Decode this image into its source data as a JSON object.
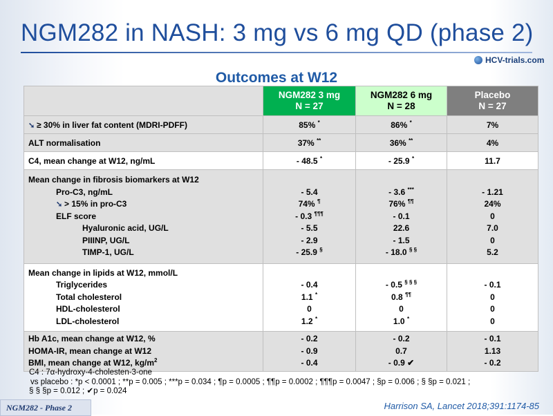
{
  "title": "NGM282 in NASH: 3 mg vs 6 mg QD (phase 2)",
  "logo_text": "HCV-trials.com",
  "subtitle": "Outcomes at W12",
  "header": {
    "col1_line1": "NGM282 3 mg",
    "col1_line2": "N = 27",
    "col2_line1": "NGM282 6 mg",
    "col2_line2": "N = 28",
    "col3_line1": "Placebo",
    "col3_line2": "N = 27"
  },
  "rows": {
    "liver_fat": {
      "label": "≥ 30% in liver fat content (MDRI-PDFF)",
      "v1": "85%",
      "s1": "*",
      "v2": "86%",
      "s2": "*",
      "v3": "7%"
    },
    "alt": {
      "label": "ALT normalisation",
      "v1": "37%",
      "s1": "**",
      "v2": "36%",
      "s2": "**",
      "v3": "4%"
    },
    "c4": {
      "label": "C4, mean change at W12, ng/mL",
      "v1": "- 48.5",
      "s1": "*",
      "v2": "- 25.9",
      "s2": "*",
      "v3": "11.7"
    },
    "fibrosis": {
      "heading": "Mean change in fibrosis biomarkers at W12",
      "procs": {
        "label": "Pro-C3, ng/mL",
        "v1": "- 5.4",
        "s1": "",
        "v2": "- 3.6",
        "s2": "***",
        "v3": "- 1.21"
      },
      "procs15": {
        "label": "> 15% in pro-C3",
        "v1": "74%",
        "s1": "¶",
        "v2": "76%",
        "s2": "¶¶",
        "v3": "24%"
      },
      "elf": {
        "label": "ELF score",
        "v1": "- 0.3",
        "s1": "¶¶¶",
        "v2": "- 0.1",
        "s2": "",
        "v3": "0"
      },
      "ha": {
        "label": "Hyaluronic acid, UG/L",
        "v1": "- 5.5",
        "s1": "",
        "v2": "22.6",
        "s2": "",
        "v3": "7.0"
      },
      "piiinp": {
        "label": "PIIINP, UG/L",
        "v1": "- 2.9",
        "s1": "",
        "v2": "- 1.5",
        "s2": "",
        "v3": "0"
      },
      "timp": {
        "label": "TIMP-1, UG/L",
        "v1": "- 25.9",
        "s1": "§",
        "v2": "- 18.0",
        "s2": "§ §",
        "v3": "5.2"
      }
    },
    "lipids": {
      "heading": "Mean change in lipids at W12, mmol/L",
      "tg": {
        "label": "Triglycerides",
        "v1": "- 0.4",
        "s1": "",
        "v2": "- 0.5",
        "s2": "§ § §",
        "v3": "- 0.1"
      },
      "tc": {
        "label": "Total cholesterol",
        "v1": "1.1",
        "s1": "*",
        "v2": "0.8",
        "s2": "¶¶",
        "v3": "0"
      },
      "hdl": {
        "label": "HDL-cholesterol",
        "v1": "0",
        "s1": "",
        "v2": "0",
        "s2": "",
        "v3": "0"
      },
      "ldl": {
        "label": "LDL-cholesterol",
        "v1": "1.2",
        "s1": "*",
        "v2": "1.0",
        "s2": "*",
        "v3": "0"
      }
    },
    "metabolic": {
      "hba1c": {
        "label": "Hb A1c, mean change at W12, %",
        "v1": "- 0.2",
        "v2": "- 0.2",
        "v3": "- 0.1"
      },
      "homa": {
        "label": "HOMA-IR, mean change at W12",
        "v1": "- 0.9",
        "v2": "0.7",
        "v3": "1.13"
      },
      "bmi": {
        "label": "BMI, mean change at W12, kg/m",
        "label_sup": "2",
        "v1": "- 0.4",
        "v2": "- 0.9",
        "s2": "✔",
        "v3": "- 0.2"
      }
    }
  },
  "footnotes": {
    "line1": "C4 : 7α-hydroxy-4-cholesten-3-one",
    "line2": "vs placebo : *p < 0.0001 ; **p = 0.005 ; ***p = 0.034 ; ¶p = 0.0005 ; ¶¶p = 0.0002 ; ¶¶¶p = 0.0047 ; §p = 0.006 ; § §p = 0.021 ;",
    "line3": "§ § §p = 0.012 ; ✔p = 0.024"
  },
  "bottom_tag": "NGM282 - Phase 2",
  "reference": "Harrison SA, Lancet 2018;391:1174-85"
}
